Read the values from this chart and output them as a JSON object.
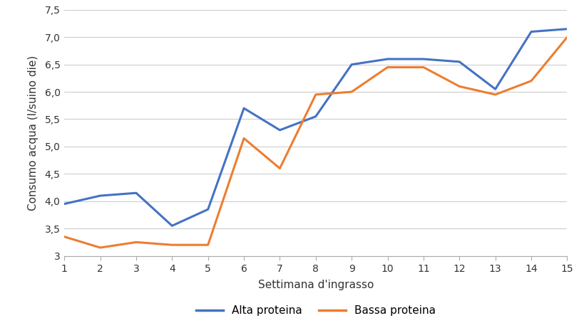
{
  "x": [
    1,
    2,
    3,
    4,
    5,
    6,
    7,
    8,
    9,
    10,
    11,
    12,
    13,
    14,
    15
  ],
  "alta_proteina": [
    3.95,
    4.1,
    4.15,
    3.55,
    3.85,
    5.7,
    5.3,
    5.55,
    6.5,
    6.6,
    6.6,
    6.55,
    6.05,
    7.1,
    7.15
  ],
  "bassa_proteina": [
    3.35,
    3.15,
    3.25,
    3.2,
    3.2,
    5.15,
    4.6,
    5.95,
    6.0,
    6.45,
    6.45,
    6.1,
    5.95,
    6.2,
    7.0
  ],
  "color_alta": "#4472C4",
  "color_bassa": "#ED7D31",
  "xlabel": "Settimana d'ingrasso",
  "ylabel": "Consumo acqua (l/suino die)",
  "ylim": [
    3.0,
    7.5
  ],
  "yticks": [
    3.0,
    3.5,
    4.0,
    4.5,
    5.0,
    5.5,
    6.0,
    6.5,
    7.0,
    7.5
  ],
  "ytick_labels": [
    "3",
    "3,5",
    "4,0",
    "4,5",
    "5,0",
    "5,5",
    "6,0",
    "6,5",
    "7,0",
    "7,5"
  ],
  "legend_alta": "Alta proteina",
  "legend_bassa": "Bassa proteina",
  "background_color": "#ffffff",
  "grid_color": "#cccccc",
  "line_width": 2.2
}
